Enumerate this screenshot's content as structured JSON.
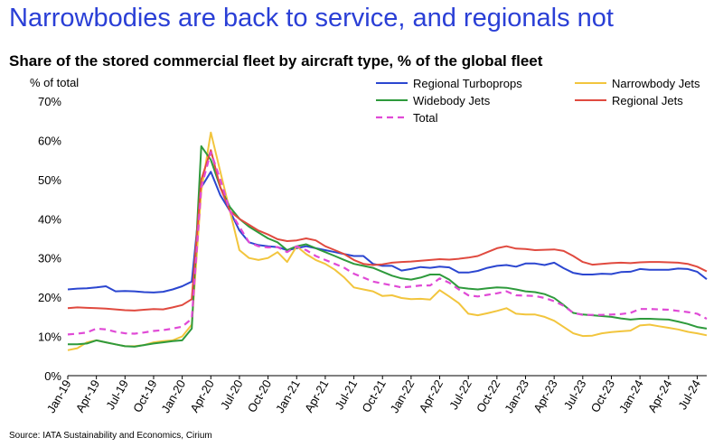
{
  "headline": "Narrowbodies are back to service, and regionals not",
  "source": "Source: IATA Sustainability and Economics, Cirium",
  "chart_data": {
    "type": "line",
    "title": "Share of the stored commercial fleet by aircraft type, % of the global fleet",
    "ylabel": "% of total",
    "ylim": [
      0,
      70
    ],
    "yticks": [
      0,
      10,
      20,
      30,
      40,
      50,
      60,
      70
    ],
    "ytick_labels": [
      "0%",
      "10%",
      "20%",
      "30%",
      "40%",
      "50%",
      "60%",
      "70%"
    ],
    "grid": false,
    "legend_position": "top-right",
    "x": [
      "Jan-19",
      "Feb-19",
      "Mar-19",
      "Apr-19",
      "May-19",
      "Jun-19",
      "Jul-19",
      "Aug-19",
      "Sep-19",
      "Oct-19",
      "Nov-19",
      "Dec-19",
      "Jan-20",
      "Feb-20",
      "Mar-20",
      "Apr-20",
      "May-20",
      "Jun-20",
      "Jul-20",
      "Aug-20",
      "Sep-20",
      "Oct-20",
      "Nov-20",
      "Dec-20",
      "Jan-21",
      "Feb-21",
      "Mar-21",
      "Apr-21",
      "May-21",
      "Jun-21",
      "Jul-21",
      "Aug-21",
      "Sep-21",
      "Oct-21",
      "Nov-21",
      "Dec-21",
      "Jan-22",
      "Feb-22",
      "Mar-22",
      "Apr-22",
      "May-22",
      "Jun-22",
      "Jul-22",
      "Aug-22",
      "Sep-22",
      "Oct-22",
      "Nov-22",
      "Dec-22",
      "Jan-23",
      "Feb-23",
      "Mar-23",
      "Apr-23",
      "May-23",
      "Jun-23",
      "Jul-23",
      "Aug-23",
      "Sep-23",
      "Oct-23",
      "Nov-23",
      "Dec-23",
      "Jan-24",
      "Feb-24",
      "Mar-24",
      "Apr-24",
      "May-24",
      "Jun-24",
      "Jul-24",
      "Aug-24"
    ],
    "xtick_labels": [
      "Jan-19",
      "Apr-19",
      "Jul-19",
      "Oct-19",
      "Jan-20",
      "Apr-20",
      "Jul-20",
      "Oct-20",
      "Jan-21",
      "Apr-21",
      "Jul-21",
      "Oct-21",
      "Jan-22",
      "Apr-22",
      "Jul-22",
      "Oct-22",
      "Jan-23",
      "Apr-23",
      "Jul-23",
      "Oct-23",
      "Jan-24",
      "Apr-24",
      "Jul-24"
    ],
    "series": [
      {
        "name": "Regional Turboprops",
        "color": "#2b46d0",
        "dashed": false,
        "values": [
          22,
          22.2,
          22.3,
          22.5,
          22.8,
          21.5,
          21.6,
          21.5,
          21.3,
          21.2,
          21.4,
          22,
          22.8,
          24,
          48,
          52,
          46,
          42,
          37,
          34,
          33.3,
          33,
          32.8,
          32,
          32.5,
          33,
          32.5,
          32,
          31.5,
          31,
          30.5,
          30.5,
          28.5,
          28,
          28,
          26.8,
          27.2,
          27.7,
          27.5,
          27.8,
          27.6,
          26.3,
          26.3,
          26.7,
          27.5,
          28,
          28.2,
          27.8,
          28.6,
          28.6,
          28.2,
          28.8,
          27.4,
          26.2,
          25.8,
          25.8,
          26,
          25.9,
          26.4,
          26.5,
          27.2,
          27,
          27,
          27,
          27.3,
          27.2,
          26.5,
          24.6
        ]
      },
      {
        "name": "Narrowbody Jets",
        "color": "#f2c53d",
        "dashed": false,
        "values": [
          6.5,
          7,
          8.5,
          9,
          8.5,
          8,
          7.5,
          7.5,
          7.8,
          8.5,
          8.8,
          9,
          10,
          13,
          47,
          62,
          52,
          42,
          32,
          30,
          29.5,
          30,
          31.5,
          29,
          33,
          31,
          29.5,
          28.5,
          27,
          25,
          22.5,
          22,
          21.5,
          20.3,
          20.5,
          19.8,
          19.5,
          19.6,
          19.4,
          21.8,
          20.2,
          18.5,
          15.8,
          15.4,
          15.9,
          16.5,
          17.2,
          15.8,
          15.6,
          15.6,
          15,
          14,
          12.4,
          10.8,
          10.1,
          10.2,
          10.8,
          11.1,
          11.3,
          11.5,
          12.8,
          13,
          12.6,
          12.2,
          11.8,
          11.2,
          10.8,
          10.3
        ]
      },
      {
        "name": "Widebody Jets",
        "color": "#2e9a3c",
        "dashed": false,
        "values": [
          8,
          8,
          8.2,
          9,
          8.5,
          8,
          7.5,
          7.4,
          7.8,
          8.2,
          8.5,
          8.8,
          9,
          12,
          58.5,
          55,
          48,
          43,
          40,
          38,
          36.5,
          35,
          34,
          32,
          33,
          33.5,
          32.5,
          31.5,
          30.5,
          29.5,
          28.5,
          28,
          27.5,
          26.5,
          25.5,
          24.8,
          24.5,
          25,
          25.8,
          25.8,
          24.5,
          22.5,
          22.2,
          22,
          22.3,
          22.5,
          22.4,
          22,
          21.5,
          21.3,
          20.8,
          19.8,
          18,
          16,
          15.6,
          15.4,
          15.2,
          15,
          14.6,
          14.3,
          14.5,
          14.5,
          14.4,
          14.3,
          13.8,
          13.2,
          12.4,
          12
        ]
      },
      {
        "name": "Regional Jets",
        "color": "#e04a3f",
        "dashed": false,
        "values": [
          17.2,
          17.4,
          17.3,
          17.2,
          17.1,
          16.9,
          16.7,
          16.6,
          16.8,
          17,
          16.9,
          17.4,
          18,
          19.5,
          50,
          57.5,
          48,
          42,
          40,
          38.5,
          37,
          36,
          34.8,
          34.3,
          34.5,
          35,
          34.5,
          33,
          32,
          31,
          29.5,
          28.5,
          28.2,
          28.4,
          28.8,
          29,
          29.1,
          29.3,
          29.5,
          29.7,
          29.6,
          29.8,
          30.1,
          30.5,
          31.5,
          32.5,
          33,
          32.4,
          32.3,
          32,
          32.1,
          32.2,
          31.8,
          30.5,
          29,
          28.3,
          28.5,
          28.7,
          28.8,
          28.7,
          28.9,
          29,
          29,
          28.9,
          28.8,
          28.5,
          27.8,
          26.6
        ]
      },
      {
        "name": "Total",
        "color": "#e04ad6",
        "dashed": true,
        "values": [
          10.5,
          10.7,
          11,
          12,
          11.8,
          11.2,
          10.8,
          10.7,
          11,
          11.4,
          11.6,
          12,
          12.5,
          14.5,
          48,
          57,
          50,
          42,
          38,
          34,
          33,
          32.7,
          32.8,
          31.5,
          33,
          32,
          30.5,
          29.5,
          28.5,
          27.5,
          26,
          25,
          24,
          23.5,
          23,
          22.5,
          22.7,
          23,
          23,
          24.8,
          23.7,
          22,
          20.5,
          20.2,
          20.6,
          21,
          21.5,
          20.5,
          20.4,
          20.3,
          19.8,
          19,
          17.8,
          16,
          15.5,
          15.5,
          15.5,
          15.6,
          15.7,
          16,
          17,
          17,
          16.9,
          16.8,
          16.5,
          16.2,
          15.8,
          14.5
        ]
      }
    ]
  }
}
